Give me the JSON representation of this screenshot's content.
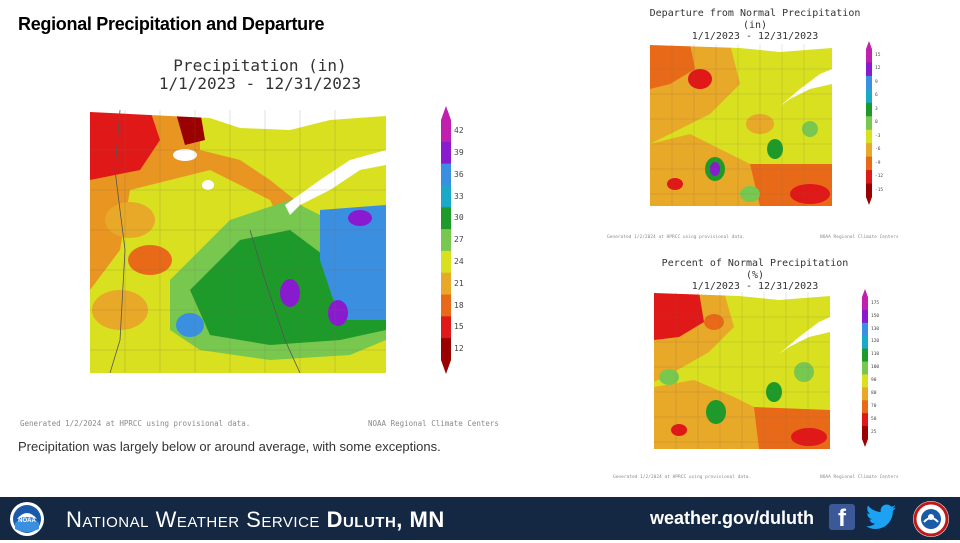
{
  "slide": {
    "title": "Regional Precipitation and Departure",
    "caption": "Precipitation was largely below or around average, with some exceptions."
  },
  "main_map": {
    "title": "Precipitation (in)\n1/1/2023 - 12/31/2023",
    "credit_left": "Generated 1/2/2024 at HPRCC using provisional data.",
    "credit_right": "NOAA Regional Climate Centers",
    "colorbar": {
      "labels": [
        "42",
        "39",
        "36",
        "33",
        "30",
        "27",
        "24",
        "21",
        "18",
        "15",
        "12"
      ],
      "colors": [
        "#c01fb0",
        "#8a1ad0",
        "#3a8fe0",
        "#1aa9c8",
        "#1e9a2a",
        "#78c850",
        "#d8e020",
        "#e8a828",
        "#e86a18",
        "#e01818",
        "#9a0000"
      ]
    }
  },
  "departure_map": {
    "title": "Departure from Normal Precipitation (in)\n1/1/2023 - 12/31/2023",
    "credit_left": "Generated 1/2/2024 at HPRCC using provisional data.",
    "credit_right": "NOAA Regional Climate Centers",
    "colorbar": {
      "labels": [
        "15",
        "12",
        "9",
        "6",
        "3",
        "0",
        "-3",
        "-6",
        "-9",
        "-12",
        "-15"
      ],
      "colors": [
        "#c01fb0",
        "#8a1ad0",
        "#3a8fe0",
        "#1aa9c8",
        "#1e9a2a",
        "#78c850",
        "#d8e020",
        "#e8a828",
        "#e86a18",
        "#e01818",
        "#9a0000"
      ]
    }
  },
  "percent_map": {
    "title": "Percent of Normal Precipitation (%)\n1/1/2023 - 12/31/2023",
    "credit_left": "Generated 1/2/2024 at HPRCC using provisional data.",
    "credit_right": "NOAA Regional Climate Centers",
    "colorbar": {
      "labels": [
        "175",
        "150",
        "130",
        "120",
        "110",
        "100",
        "90",
        "80",
        "70",
        "50",
        "25"
      ],
      "colors": [
        "#c01fb0",
        "#8a1ad0",
        "#3a8fe0",
        "#1aa9c8",
        "#1e9a2a",
        "#78c850",
        "#d8e020",
        "#e8a828",
        "#e86a18",
        "#e01818",
        "#9a0000"
      ]
    }
  },
  "footer": {
    "org_prefix": "National Weather Service",
    "office": "Duluth, MN",
    "website": "weather.gov/duluth",
    "facebook_glyph": "f",
    "noaa_logo_text": "NOAA",
    "background": "#142743"
  },
  "icons": {
    "noaa_logo": "noaa-logo-icon",
    "facebook": "facebook-icon",
    "twitter": "twitter-icon",
    "nws_logo": "nws-logo-icon"
  }
}
